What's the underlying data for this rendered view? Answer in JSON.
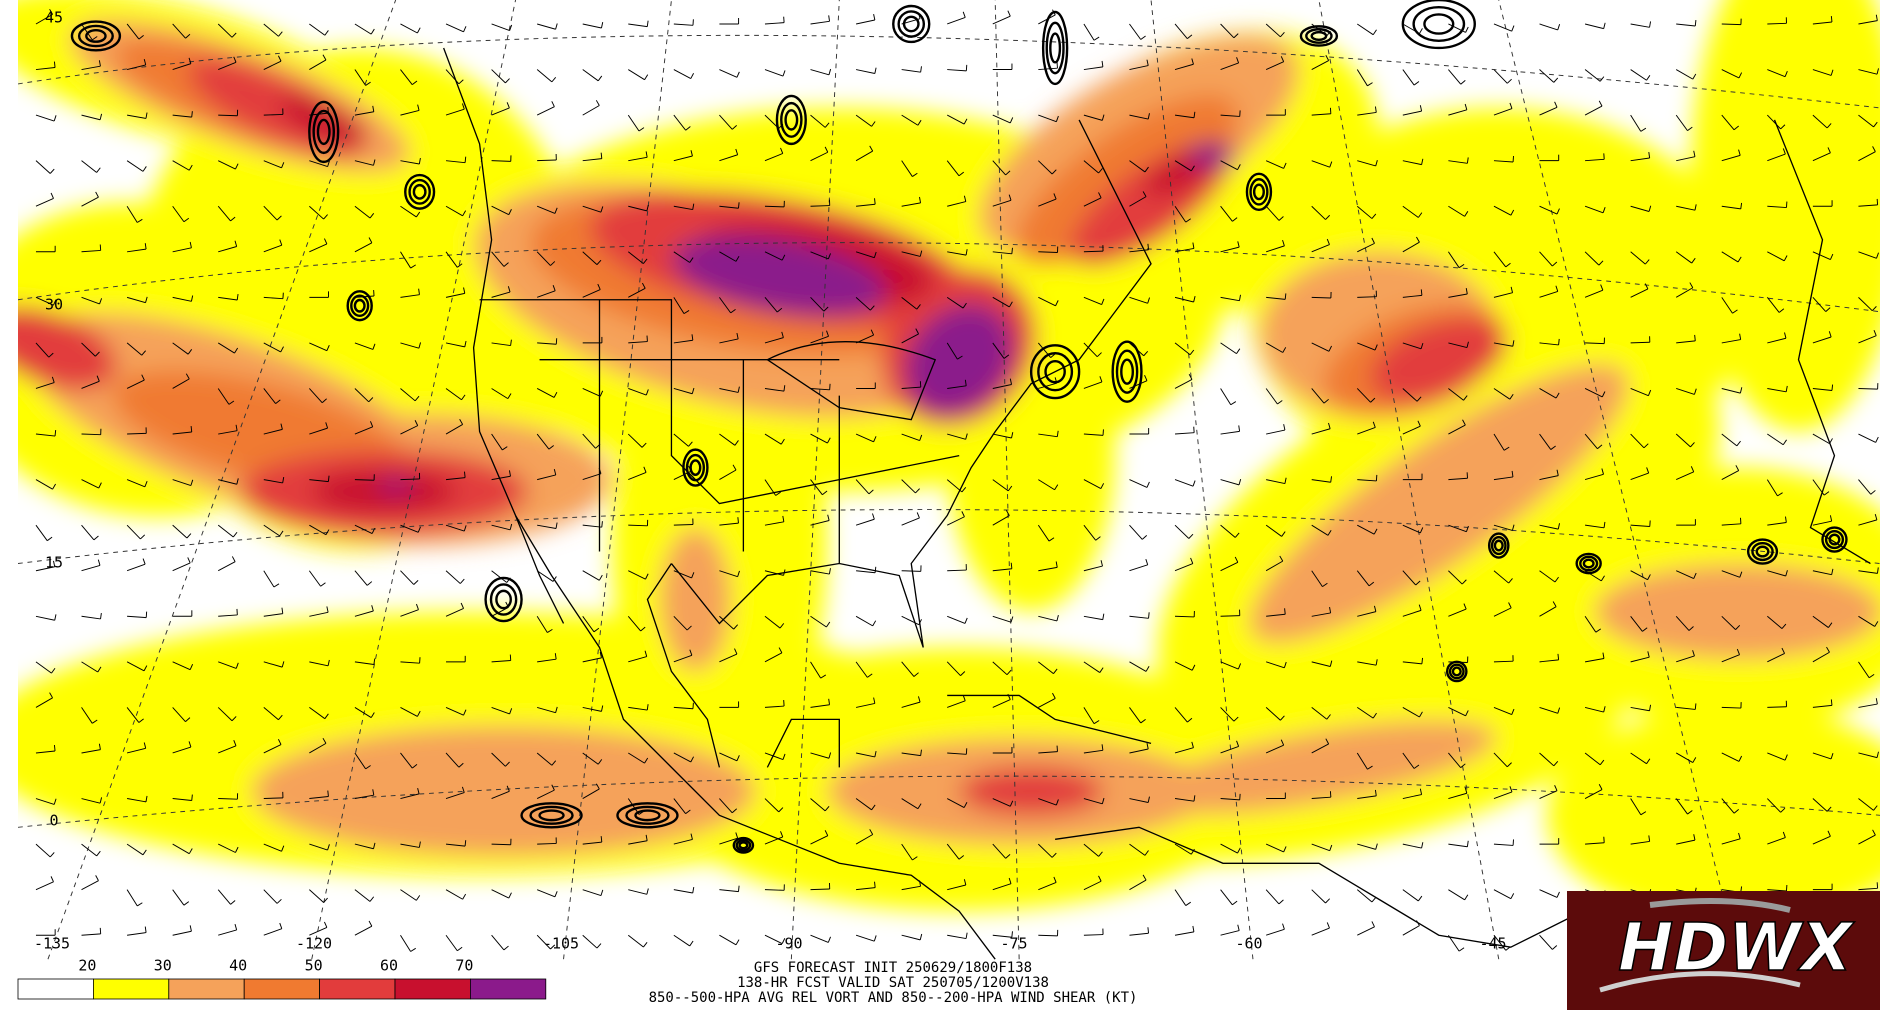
{
  "map": {
    "lat_labels": [
      45,
      30,
      15,
      0
    ],
    "lon_labels": [
      -135,
      -120,
      -105,
      -90,
      -75,
      -60,
      -45
    ],
    "title_lines": [
      "GFS FORECAST INIT 250629/1800F138",
      "138-HR FCST VALID SAT 250705/1200V138",
      "850--500-HPA AVG REL VORT AND 850--200-HPA WIND SHEAR (KT)"
    ],
    "legend": {
      "ticks": [
        20,
        30,
        40,
        50,
        60,
        70
      ],
      "colors": [
        "#ffffff",
        "#ffff00",
        "#f5a25a",
        "#f07a30",
        "#e23c3c",
        "#c8102e",
        "#8b1a8b"
      ]
    }
  },
  "logo": {
    "text": "HDWX"
  }
}
